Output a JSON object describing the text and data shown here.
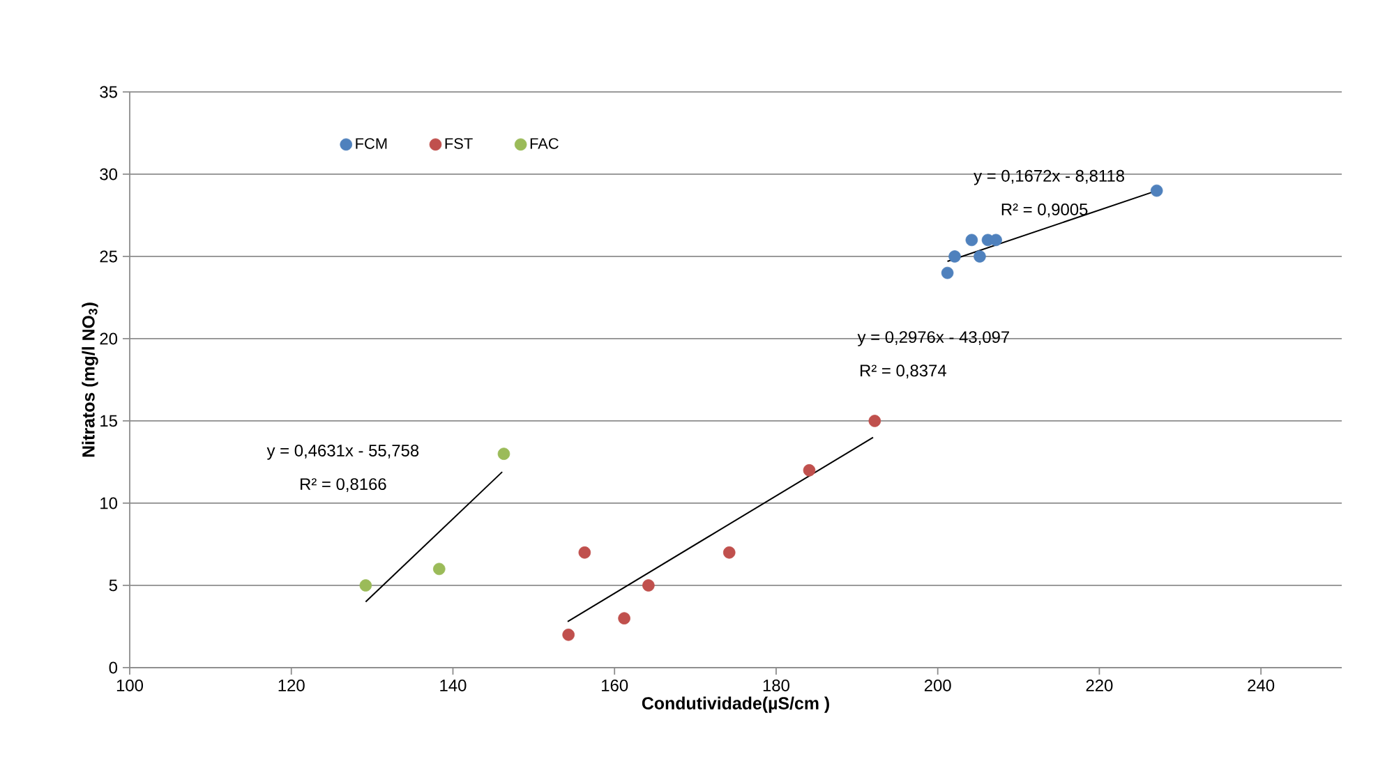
{
  "chart_data": {
    "type": "scatter",
    "xlabel": "Condutividade(µS/cm )",
    "ylabel": "Nitratos (mg/l NO$_{3}$)",
    "xlim": [
      100,
      250
    ],
    "xticks": [
      100,
      120,
      140,
      160,
      180,
      200,
      220,
      240
    ],
    "ylim": [
      0,
      35
    ],
    "yticks": [
      0,
      5,
      10,
      15,
      20,
      25,
      30,
      35
    ],
    "grid": "y",
    "legend": "top left",
    "marker": "circle",
    "series": [
      {
        "name": "FCM",
        "color": "#4f81bd",
        "x": [
          201.2,
          202.1,
          204.2,
          205.2,
          206.2,
          207.2,
          227.1
        ],
        "values": [
          24,
          25,
          26,
          25,
          26,
          26,
          29
        ]
      },
      {
        "name": "FST",
        "color": "#c0504d",
        "x": [
          154.3,
          156.3,
          161.2,
          164.2,
          174.2,
          184.1,
          192.2
        ],
        "values": [
          2,
          7,
          3,
          5,
          7,
          12,
          15
        ]
      },
      {
        "name": "FAC",
        "color": "#9bbb59",
        "x": [
          129.2,
          138.3,
          146.3
        ],
        "values": [
          5,
          6,
          13
        ]
      },
      {
        "type": "line",
        "marker": "none",
        "color": "#000000",
        "x": [
          201.2,
          227.1
        ],
        "values": [
          24.7,
          29.0
        ]
      },
      {
        "type": "line",
        "marker": "none",
        "color": "#000000",
        "x": [
          154.2,
          192.0
        ],
        "values": [
          2.8,
          14.0
        ]
      },
      {
        "type": "line",
        "marker": "none",
        "color": "#000000",
        "x": [
          129.2,
          146.1
        ],
        "values": [
          4.0,
          11.9
        ]
      }
    ],
    "annotations": [
      "y = 0,1672x - 8,8118",
      "R² = 0,9005",
      "y = 0,2976x - 43,097",
      "R² = 0,8374",
      "y = 0,4631x - 55,758",
      "R² = 0,8166"
    ]
  }
}
